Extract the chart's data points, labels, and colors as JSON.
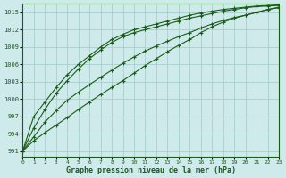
{
  "xlabel": "Graphe pression niveau de la mer (hPa)",
  "background_color": "#ceeaea",
  "grid_color": "#aacece",
  "line_color": "#1a5c1a",
  "xmin": 0,
  "xmax": 23,
  "ymin": 990,
  "ymax": 1016.5,
  "yticks": [
    991,
    994,
    997,
    1000,
    1003,
    1006,
    1009,
    1012,
    1015
  ],
  "xticks": [
    0,
    1,
    2,
    3,
    4,
    5,
    6,
    7,
    8,
    9,
    10,
    11,
    12,
    13,
    14,
    15,
    16,
    17,
    18,
    19,
    20,
    21,
    22,
    23
  ],
  "series": [
    [
      991.0,
      992.8,
      994.2,
      995.5,
      996.8,
      998.2,
      999.5,
      1000.8,
      1002.0,
      1003.2,
      1004.5,
      1005.8,
      1007.0,
      1008.2,
      1009.3,
      1010.3,
      1011.5,
      1012.5,
      1013.3,
      1014.0,
      1014.5,
      1015.0,
      1015.5,
      1015.8
    ],
    [
      991.0,
      993.5,
      996.0,
      998.0,
      999.8,
      1001.2,
      1002.5,
      1003.8,
      1005.0,
      1006.2,
      1007.3,
      1008.3,
      1009.2,
      1010.0,
      1010.8,
      1011.5,
      1012.3,
      1013.0,
      1013.6,
      1014.1,
      1014.5,
      1015.0,
      1015.5,
      1015.9
    ],
    [
      991.0,
      995.0,
      998.2,
      1001.0,
      1003.2,
      1005.2,
      1007.0,
      1008.5,
      1009.8,
      1010.8,
      1011.5,
      1012.0,
      1012.5,
      1013.0,
      1013.5,
      1014.0,
      1014.4,
      1014.8,
      1015.2,
      1015.5,
      1015.8,
      1016.0,
      1016.1,
      1016.2
    ],
    [
      991.0,
      997.0,
      999.5,
      1002.0,
      1004.2,
      1006.0,
      1007.5,
      1009.0,
      1010.3,
      1011.2,
      1012.0,
      1012.5,
      1013.0,
      1013.5,
      1014.0,
      1014.5,
      1014.9,
      1015.2,
      1015.5,
      1015.7,
      1015.9,
      1016.1,
      1016.2,
      1016.3
    ]
  ]
}
